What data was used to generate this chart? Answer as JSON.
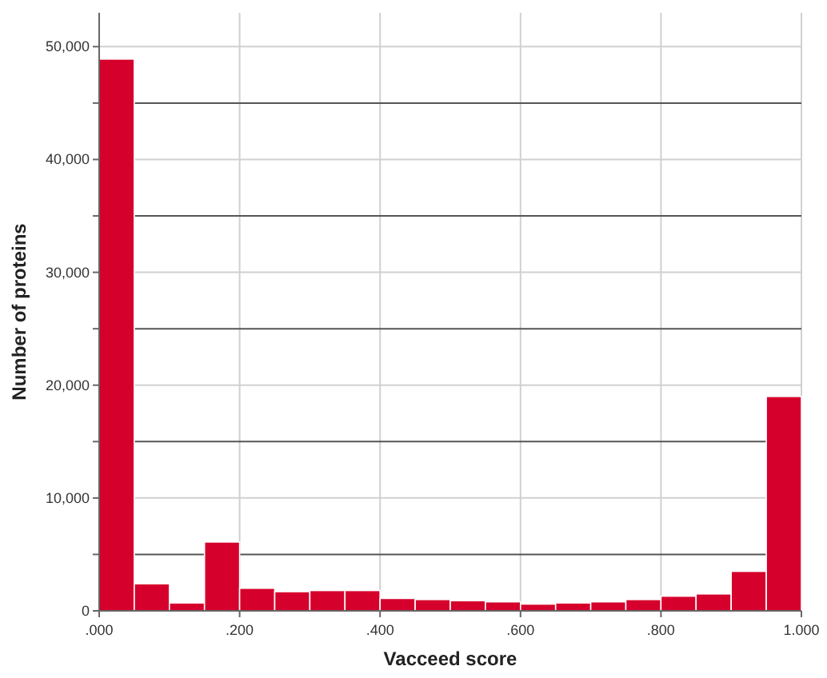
{
  "chart_data": {
    "type": "histogram",
    "xlabel": "Vacceed score",
    "ylabel": "Number of proteins",
    "bins": [
      0,
      0.05,
      0.1,
      0.15,
      0.2,
      0.25,
      0.3,
      0.35,
      0.4,
      0.45,
      0.5,
      0.55,
      0.6,
      0.65,
      0.7,
      0.75,
      0.8,
      0.85,
      0.9,
      0.95,
      1
    ],
    "values": [
      48900,
      2400,
      700,
      6100,
      2000,
      1700,
      1800,
      1800,
      1100,
      1000,
      900,
      800,
      600,
      700,
      800,
      1000,
      1300,
      1500,
      3500,
      19000
    ],
    "color": "#d5002c",
    "xlim": [
      0,
      1
    ],
    "xticks": [
      {
        "value": 0,
        "label": ".000"
      },
      {
        "value": 0.2,
        "label": ".200"
      },
      {
        "value": 0.4,
        "label": ".400"
      },
      {
        "value": 0.6,
        "label": ".600"
      },
      {
        "value": 0.8,
        "label": ".800"
      },
      {
        "value": 1,
        "label": "1.000"
      }
    ],
    "ylim": [
      0,
      53000
    ],
    "yticks": [
      0,
      {
        "value": 5000,
        "label": null
      },
      {
        "value": 10000,
        "label": "10,000"
      },
      {
        "value": 15000,
        "label": null
      },
      {
        "value": 20000,
        "label": "20,000"
      },
      {
        "value": 25000,
        "label": null
      },
      {
        "value": 30000,
        "label": "30,000"
      },
      {
        "value": 35000,
        "label": null
      },
      {
        "value": 40000,
        "label": "40,000"
      },
      {
        "value": 45000,
        "label": null
      },
      {
        "value": 50000,
        "label": "50,000"
      }
    ],
    "grid": true
  }
}
